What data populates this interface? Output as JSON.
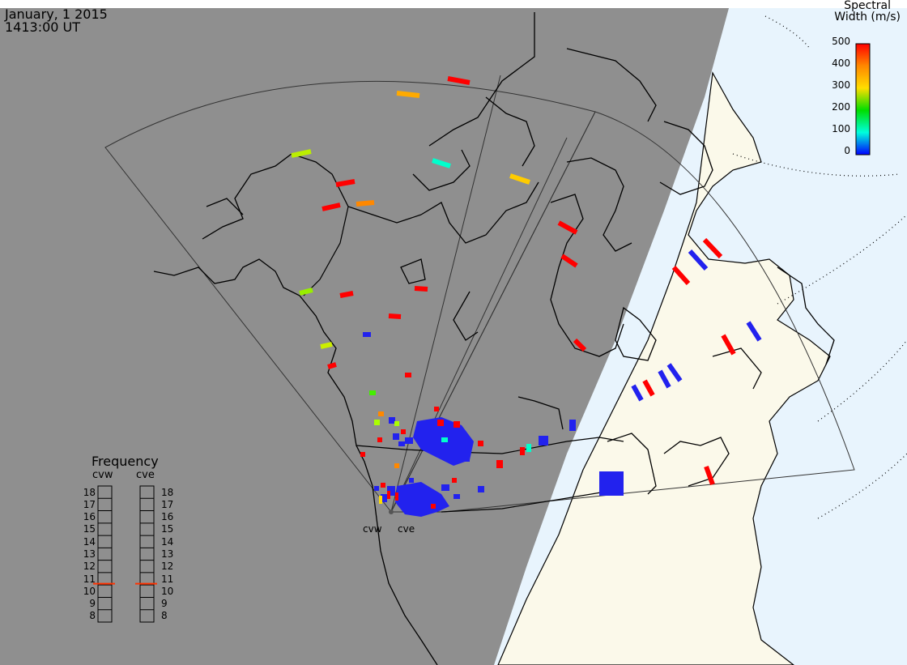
{
  "header": {
    "date": "January, 1 2015",
    "time": "1413:00 UT"
  },
  "colorbar": {
    "title_line1": "Spectral",
    "title_line2": "Width (m/s)",
    "ticks": [
      "500",
      "400",
      "300",
      "200",
      "100",
      "0"
    ],
    "range": [
      0,
      500
    ],
    "colors": [
      "#ff0000",
      "#ff8800",
      "#ffdd00",
      "#00dd00",
      "#00ffdd",
      "#0000ff"
    ]
  },
  "frequency_panel": {
    "title": "Frequency",
    "radars": [
      "cvw",
      "cve"
    ],
    "scale": [
      "18",
      "17",
      "16",
      "15",
      "14",
      "13",
      "12",
      "11",
      "10",
      "9",
      "8"
    ],
    "cvw_value_mhz": 10.6,
    "cve_value_mhz": 10.6,
    "marker_color": "#ff3300"
  },
  "sites": [
    "cvw",
    "cve"
  ],
  "colors": {
    "night": "#8f8f8f",
    "day_land": "#fbf9ea",
    "ocean": "#e8f4fd",
    "coast": "#000000"
  }
}
